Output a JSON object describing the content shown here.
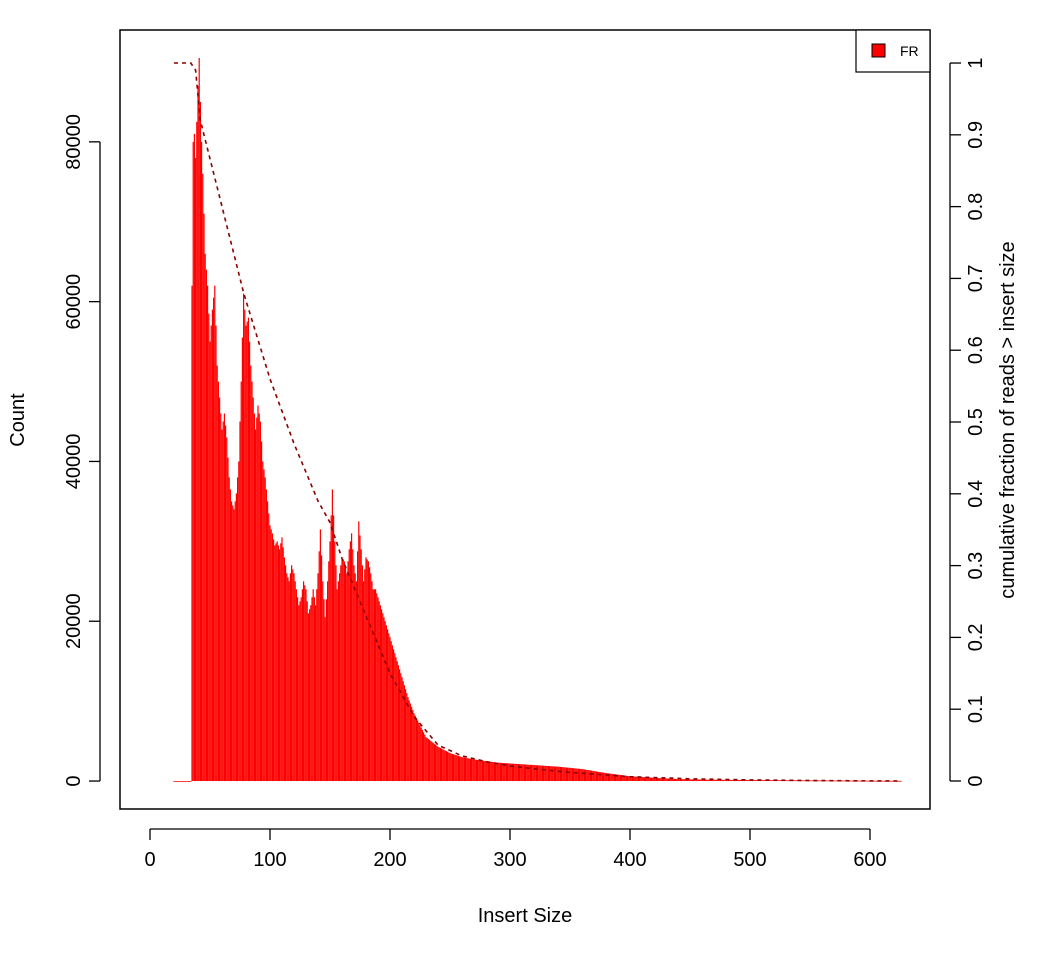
{
  "chart_data": {
    "type": "bar",
    "title": "",
    "xlabel": "Insert Size",
    "ylabel": "Count",
    "y2label": "cumulative fraction of reads > insert size",
    "xlim": [
      -25,
      650
    ],
    "ylim": [
      -3500,
      94000
    ],
    "y2lim": [
      -0.039,
      1.046
    ],
    "x_ticks": [
      0,
      100,
      200,
      300,
      400,
      500,
      600
    ],
    "y_ticks": [
      0,
      20000,
      40000,
      60000,
      80000
    ],
    "y2_ticks": [
      0,
      0.1,
      0.2,
      0.3,
      0.4,
      0.5,
      0.6,
      0.7,
      0.8,
      0.9,
      1
    ],
    "y2_tick_labels": [
      "0",
      "0.1",
      "0.2",
      "0.3",
      "0.4",
      "0.5",
      "0.6",
      "0.7",
      "0.8",
      "0.9",
      "1"
    ],
    "grid": false,
    "legend": {
      "position": "top-right",
      "entries": [
        {
          "label": "FR",
          "color": "#ff0000"
        }
      ]
    },
    "colors": {
      "bars": "#ff0000",
      "cumulative_line": "#8b0000"
    },
    "series": [
      {
        "name": "FR",
        "kind": "histogram",
        "bin_width": 1,
        "anchors_x": [
          20,
          34,
          35,
          36,
          37,
          38,
          40,
          41,
          42,
          43,
          44,
          46,
          48,
          50,
          52,
          54,
          56,
          58,
          60,
          62,
          64,
          66,
          68,
          70,
          72,
          74,
          76,
          78,
          80,
          82,
          84,
          86,
          88,
          90,
          92,
          94,
          96,
          98,
          100,
          102,
          104,
          106,
          108,
          110,
          112,
          114,
          116,
          118,
          120,
          122,
          124,
          126,
          128,
          130,
          132,
          134,
          136,
          138,
          140,
          142,
          144,
          146,
          148,
          150,
          152,
          154,
          156,
          158,
          160,
          162,
          164,
          166,
          168,
          170,
          172,
          174,
          176,
          178,
          180,
          182,
          184,
          186,
          188,
          190,
          192,
          194,
          196,
          198,
          200,
          205,
          210,
          215,
          220,
          225,
          230,
          240,
          250,
          260,
          270,
          280,
          290,
          300,
          320,
          340,
          360,
          380,
          400,
          420,
          440,
          460,
          480,
          500,
          550,
          600,
          626
        ],
        "anchors_y": [
          0,
          0,
          62000,
          80000,
          81000,
          78000,
          87000,
          90500,
          85000,
          80000,
          76000,
          66000,
          62000,
          55000,
          59000,
          62000,
          52000,
          48000,
          44000,
          46000,
          43000,
          38000,
          35000,
          34000,
          36000,
          40000,
          50000,
          61000,
          57000,
          58000,
          52000,
          48000,
          44000,
          47000,
          45000,
          40000,
          38000,
          35000,
          32000,
          31000,
          29500,
          30000,
          29000,
          30500,
          28000,
          26000,
          25000,
          27000,
          26000,
          24000,
          22000,
          23000,
          25000,
          24000,
          21000,
          22000,
          24000,
          22000,
          26000,
          31500,
          25000,
          20500,
          25000,
          30000,
          36500,
          30000,
          24000,
          26000,
          28000,
          27500,
          26000,
          29000,
          31000,
          27000,
          25000,
          32500,
          29000,
          25000,
          28000,
          27500,
          26000,
          24000,
          24000,
          23000,
          22000,
          21000,
          20000,
          19000,
          18000,
          15500,
          13000,
          10500,
          8500,
          7000,
          5500,
          4300,
          3500,
          3000,
          2700,
          2500,
          2300,
          2200,
          2000,
          1800,
          1500,
          1000,
          600,
          400,
          250,
          180,
          150,
          120,
          80,
          40,
          20
        ]
      },
      {
        "name": "cumulative fraction of reads > insert size",
        "kind": "line",
        "axis": "right",
        "x": [
          20,
          34,
          38,
          42,
          60,
          78,
          100,
          120,
          140,
          150,
          160,
          180,
          200,
          220,
          240,
          260,
          280,
          300,
          320,
          350,
          400,
          450,
          500,
          550,
          600,
          626
        ],
        "y": [
          1,
          1,
          0.99,
          0.92,
          0.8,
          0.68,
          0.56,
          0.47,
          0.39,
          0.36,
          0.31,
          0.23,
          0.15,
          0.09,
          0.05,
          0.035,
          0.027,
          0.021,
          0.017,
          0.012,
          0.006,
          0.003,
          0.0015,
          0.0007,
          0.0002,
          0
        ]
      }
    ]
  }
}
